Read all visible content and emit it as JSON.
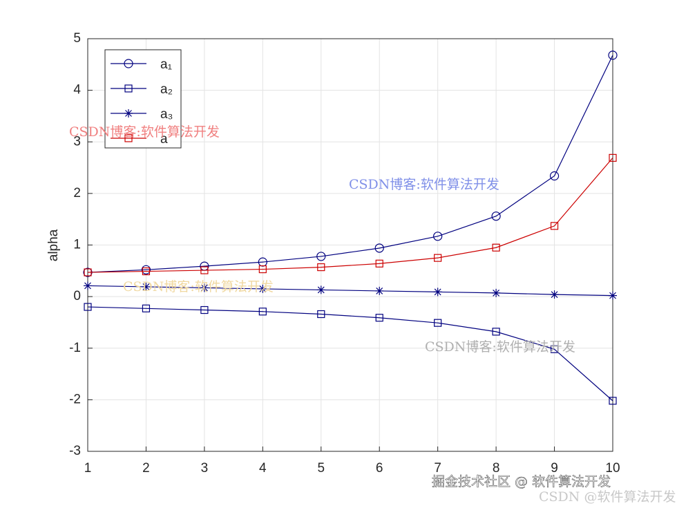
{
  "chart_data": {
    "type": "line",
    "ylabel": "alpha",
    "x": [
      1,
      2,
      3,
      4,
      5,
      6,
      7,
      8,
      9,
      10
    ],
    "series": [
      {
        "name": "a₁",
        "color": "#00007f",
        "marker": "circle",
        "values": [
          0.47,
          0.52,
          0.59,
          0.67,
          0.78,
          0.94,
          1.17,
          1.56,
          2.34,
          4.68
        ]
      },
      {
        "name": "a₂",
        "color": "#00007f",
        "marker": "square",
        "values": [
          -0.2,
          -0.23,
          -0.26,
          -0.29,
          -0.34,
          -0.41,
          -0.51,
          -0.68,
          -1.02,
          -2.02
        ]
      },
      {
        "name": "a₃",
        "color": "#00007f",
        "marker": "star",
        "values": [
          0.21,
          0.19,
          0.17,
          0.15,
          0.13,
          0.11,
          0.09,
          0.07,
          0.04,
          0.02
        ]
      },
      {
        "name": "a",
        "color": "#cc0000",
        "marker": "square",
        "values": [
          0.47,
          0.49,
          0.51,
          0.53,
          0.57,
          0.64,
          0.75,
          0.95,
          1.37,
          2.69
        ]
      }
    ],
    "xlim": [
      1,
      10
    ],
    "xticks": [
      1,
      2,
      3,
      4,
      5,
      6,
      7,
      8,
      9,
      10
    ],
    "ylim": [
      -3,
      5
    ],
    "yticks": [
      -3,
      -2,
      -1,
      0,
      1,
      2,
      3,
      4,
      5
    ],
    "grid": true,
    "legend": "northwest",
    "watermarks": [
      {
        "text": "CSDN博客:软件算法开发",
        "color": "#f08080"
      },
      {
        "text": "CSDN博客:软件算法开发",
        "color": "#8090e8"
      },
      {
        "text": "CSDN博客:软件算法开发",
        "color": "#f0d8a0"
      },
      {
        "text": "CSDN博客:软件算法开发",
        "color": "#b0b0b0"
      },
      {
        "text": "掘金技术社区 @ 软件算法开发",
        "color": "#ffffff"
      },
      {
        "text": "CSDN @软件算法开发",
        "color": "#c8c8c8"
      }
    ]
  }
}
